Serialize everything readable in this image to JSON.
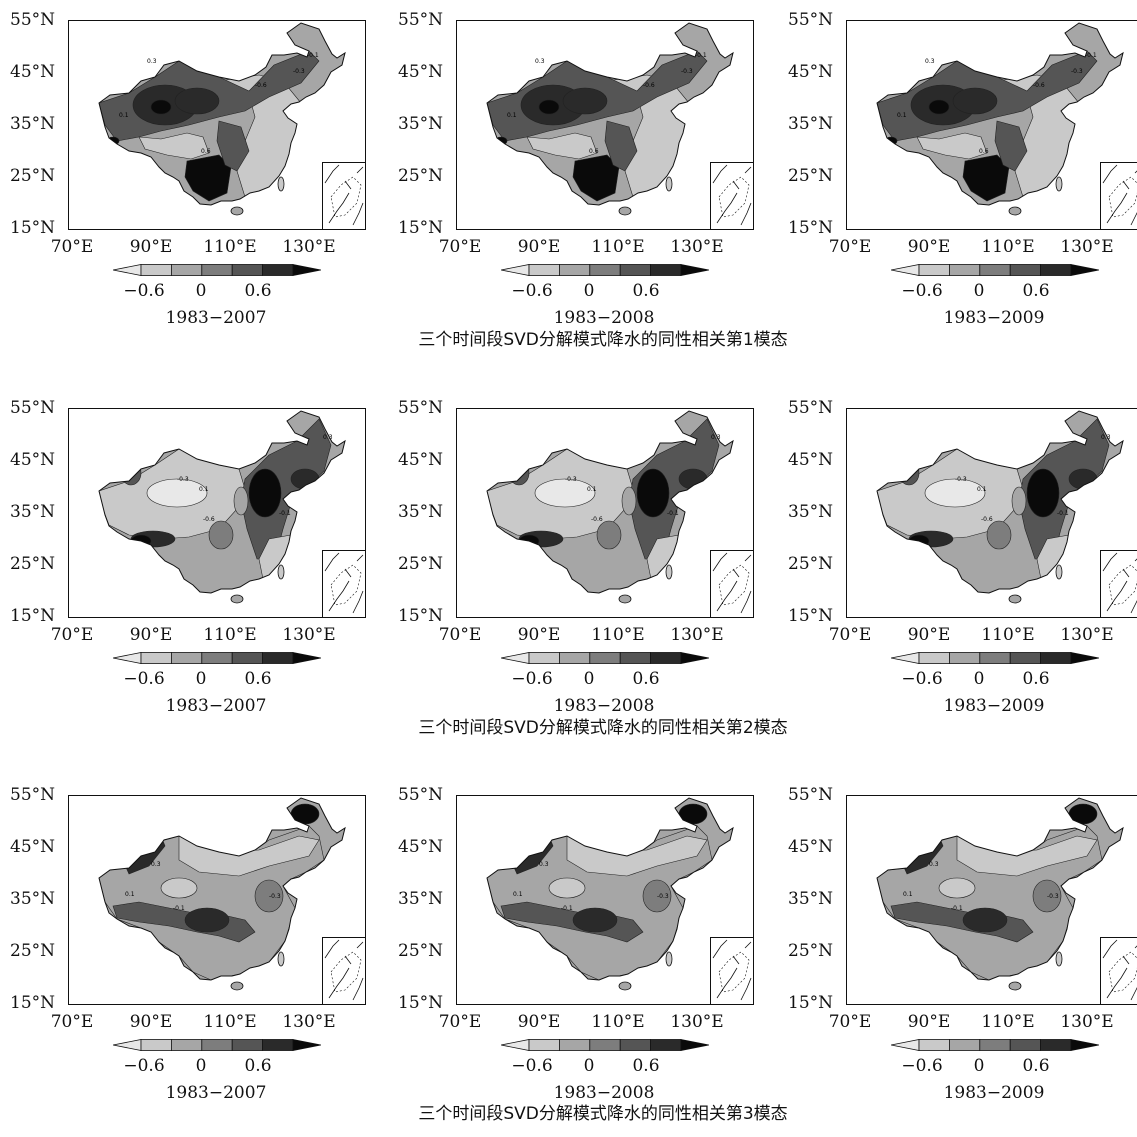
{
  "axes": {
    "lat_labels": [
      "55°N",
      "45°N",
      "35°N",
      "25°N",
      "15°N"
    ],
    "lon_labels": [
      "70°E",
      "90°E",
      "110°E",
      "130°E"
    ]
  },
  "colorbar": {
    "ticks": [
      "−0.6",
      "0",
      "0.6"
    ],
    "shades": [
      "#e8e8e8",
      "#c9c9c9",
      "#a6a6a6",
      "#7d7d7d",
      "#555555",
      "#2a2a2a",
      "#0a0a0a"
    ]
  },
  "rows": [
    {
      "caption": "三个时间段SVD分解模式降水的同性相关第1模态",
      "panels": [
        {
          "period": "1983−2007",
          "contour_labels": [
            "0.3",
            "-0.1",
            "-0.3",
            "-0.6",
            "0.1",
            "0.6"
          ]
        },
        {
          "period": "1983−2008",
          "contour_labels": [
            "0.3",
            "-0.1",
            "-0.3",
            "-0.6",
            "0.1",
            "0.6"
          ]
        },
        {
          "period": "1983−2009",
          "contour_labels": [
            "0.3",
            "-0.1",
            "-0.3",
            "-0.6",
            "0.1",
            "0.6"
          ]
        }
      ]
    },
    {
      "caption": "三个时间段SVD分解模式降水的同性相关第2模态",
      "panels": [
        {
          "period": "1983−2007",
          "contour_labels": [
            "-0.3",
            "0.3",
            "-0.1",
            "-0.6",
            "0.1"
          ]
        },
        {
          "period": "1983−2008",
          "contour_labels": [
            "-0.3",
            "0.3",
            "-0.1",
            "-0.6",
            "0.1"
          ]
        },
        {
          "period": "1983−2009",
          "contour_labels": [
            "-0.3",
            "0.3",
            "-0.1",
            "-0.6",
            "0.1"
          ]
        }
      ]
    },
    {
      "caption": "三个时间段SVD分解模式降水的同性相关第3模态",
      "panels": [
        {
          "period": "1983−2007",
          "contour_labels": [
            "0.3",
            "0.1",
            "-0.1",
            "-0.3"
          ]
        },
        {
          "period": "1983−2008",
          "contour_labels": [
            "0.3",
            "0.1",
            "-0.1",
            "-0.3"
          ]
        },
        {
          "period": "1983−2009",
          "contour_labels": [
            "0.3",
            "0.1",
            "-0.1",
            "-0.3"
          ]
        }
      ]
    }
  ]
}
